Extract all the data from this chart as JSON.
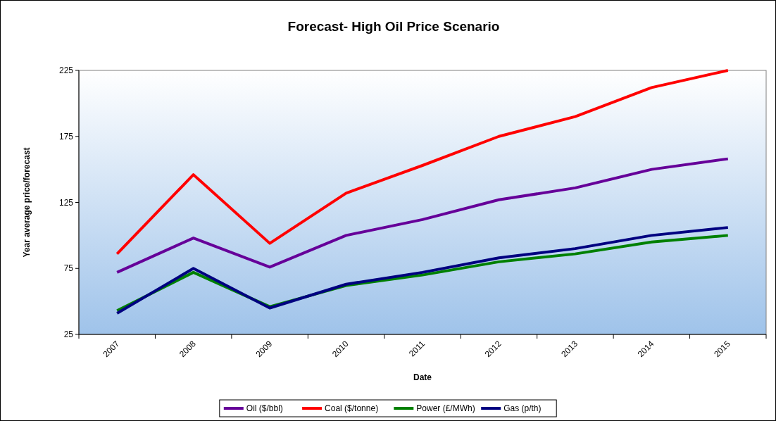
{
  "chart_data": {
    "type": "line",
    "title": "Forecast- High Oil Price Scenario",
    "xlabel": "Date",
    "ylabel": "Year average price/forecast",
    "categories": [
      "2007",
      "2008",
      "2009",
      "2010",
      "2011",
      "2012",
      "2013",
      "2014",
      "2015"
    ],
    "series": [
      {
        "name": "Oil ($/bbl)",
        "color": "#660099",
        "values": [
          72,
          98,
          76,
          100,
          112,
          127,
          136,
          150,
          158
        ]
      },
      {
        "name": "Coal ($/tonne)",
        "color": "#ff0000",
        "values": [
          86,
          146,
          94,
          132,
          153,
          175,
          190,
          212,
          225
        ]
      },
      {
        "name": "Power (£/MWh)",
        "color": "#008000",
        "values": [
          43,
          72,
          46,
          62,
          70,
          80,
          86,
          95,
          100
        ]
      },
      {
        "name": "Gas (p/th)",
        "color": "#000080",
        "values": [
          41,
          75,
          45,
          63,
          72,
          83,
          90,
          100,
          106
        ]
      }
    ],
    "ylim": [
      25,
      225
    ],
    "yticks": [
      25,
      75,
      125,
      175,
      225
    ],
    "grid": false,
    "legend": "bottom",
    "marker": "none",
    "line_style": "solid"
  }
}
